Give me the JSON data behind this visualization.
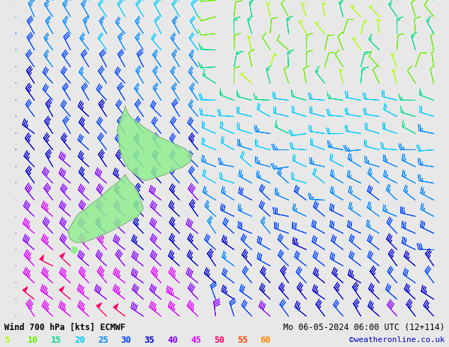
{
  "title_left": "Wind 700 hPa [kts] ECMWF",
  "title_right": "Mo 06-05-2024 06:00 UTC (12+114)",
  "credit": "©weatheronline.co.uk",
  "legend_values": [
    5,
    10,
    15,
    20,
    25,
    30,
    35,
    40,
    45,
    50,
    55,
    60
  ],
  "legend_colors": [
    "#aaff00",
    "#66ee00",
    "#00dd88",
    "#00ccff",
    "#0088ff",
    "#0044ff",
    "#0000cc",
    "#8800ff",
    "#dd00ff",
    "#ff0066",
    "#ff4400",
    "#ff8800"
  ],
  "background_color": "#e8e8e8",
  "map_land_color": "#90ee90",
  "map_border_color": "#888888",
  "figwidth": 6.34,
  "figheight": 4.9,
  "dpi": 100,
  "lon_min": 163,
  "lon_max": 200,
  "lat_min": -53,
  "lat_max": -25,
  "nx": 24,
  "ny": 20
}
